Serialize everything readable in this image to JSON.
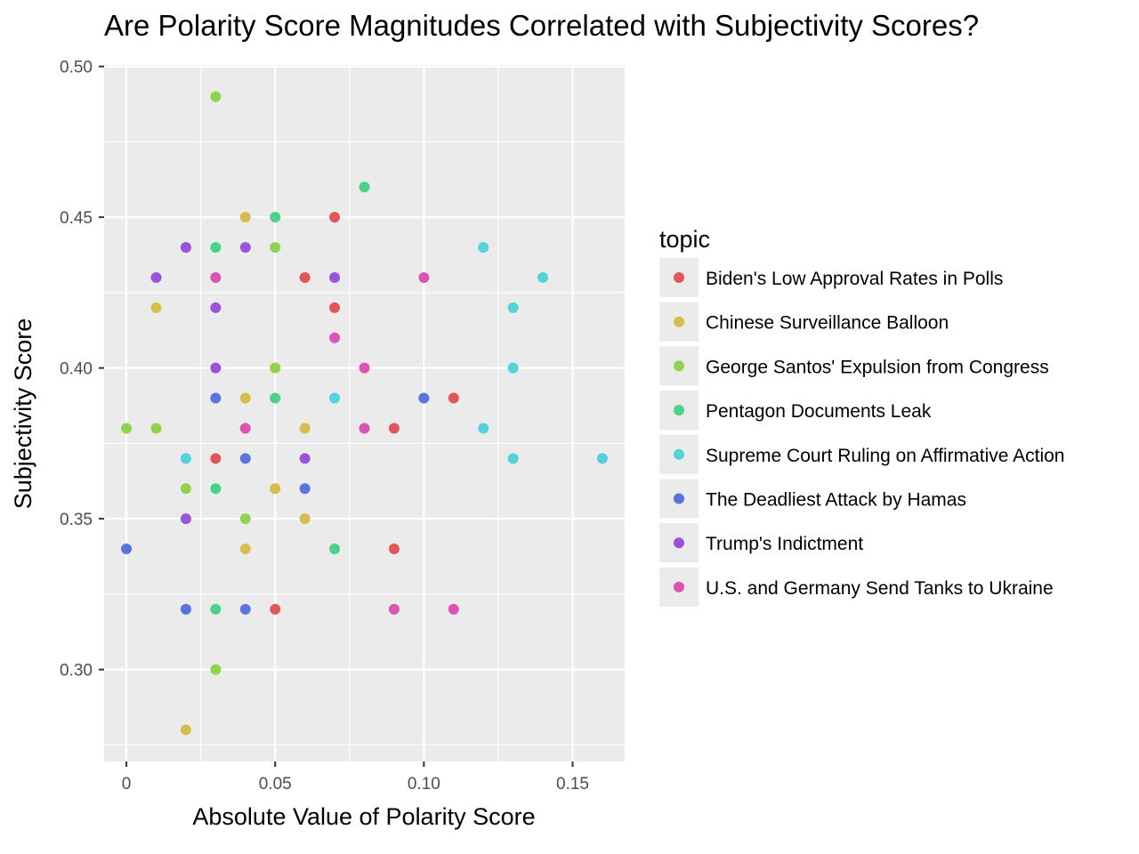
{
  "chart_data": {
    "type": "scatter",
    "title": "Are Polarity Score Magnitudes Correlated with Subjectivity Scores?",
    "xlabel": "Absolute Value of Polarity Score",
    "ylabel": "Subjectivity Score",
    "xlim": [
      -0.0075,
      0.1675
    ],
    "ylim": [
      0.2695,
      0.5005
    ],
    "x_ticks": [
      0,
      0.05,
      0.1,
      0.15
    ],
    "x_tick_labels": [
      "0",
      "0.05",
      "0.10",
      "0.15"
    ],
    "y_ticks": [
      0.3,
      0.35,
      0.4,
      0.45,
      0.5
    ],
    "y_tick_labels": [
      "0.30",
      "0.35",
      "0.40",
      "0.45",
      "0.50"
    ],
    "grid": true,
    "panel_background": "#ebebeb",
    "legend": {
      "title": "topic",
      "placement": "right"
    },
    "series": [
      {
        "name": "Biden's Low Approval Rates in Polls",
        "color": "#e15759",
        "points": [
          [
            0.07,
            0.45
          ],
          [
            0.06,
            0.43
          ],
          [
            0.07,
            0.42
          ],
          [
            0.11,
            0.39
          ],
          [
            0.09,
            0.38
          ],
          [
            0.03,
            0.37
          ],
          [
            0.09,
            0.34
          ],
          [
            0.05,
            0.32
          ]
        ]
      },
      {
        "name": "Chinese Surveillance Balloon",
        "color": "#d9bd4a",
        "points": [
          [
            0.04,
            0.45
          ],
          [
            0.01,
            0.42
          ],
          [
            0.05,
            0.4
          ],
          [
            0.04,
            0.39
          ],
          [
            0.06,
            0.38
          ],
          [
            0.05,
            0.36
          ],
          [
            0.06,
            0.35
          ],
          [
            0.04,
            0.34
          ],
          [
            0.02,
            0.28
          ]
        ]
      },
      {
        "name": "George Santos' Expulsion from Congress",
        "color": "#8fd54c",
        "points": [
          [
            0.03,
            0.49
          ],
          [
            0.05,
            0.44
          ],
          [
            0.05,
            0.4
          ],
          [
            0.0,
            0.38
          ],
          [
            0.01,
            0.38
          ],
          [
            0.02,
            0.36
          ],
          [
            0.04,
            0.35
          ],
          [
            0.03,
            0.3
          ]
        ]
      },
      {
        "name": "Pentagon Documents Leak",
        "color": "#48d486",
        "points": [
          [
            0.08,
            0.46
          ],
          [
            0.05,
            0.45
          ],
          [
            0.03,
            0.44
          ],
          [
            0.05,
            0.39
          ],
          [
            0.03,
            0.36
          ],
          [
            0.07,
            0.34
          ],
          [
            0.03,
            0.32
          ]
        ]
      },
      {
        "name": "Supreme Court Ruling on Affirmative Action",
        "color": "#52d3dc",
        "points": [
          [
            0.12,
            0.44
          ],
          [
            0.14,
            0.43
          ],
          [
            0.13,
            0.42
          ],
          [
            0.13,
            0.4
          ],
          [
            0.07,
            0.39
          ],
          [
            0.12,
            0.38
          ],
          [
            0.02,
            0.37
          ],
          [
            0.13,
            0.37
          ],
          [
            0.16,
            0.37
          ]
        ]
      },
      {
        "name": "The Deadliest Attack by Hamas",
        "color": "#5b73dc",
        "points": [
          [
            0.03,
            0.39
          ],
          [
            0.1,
            0.39
          ],
          [
            0.04,
            0.37
          ],
          [
            0.06,
            0.36
          ],
          [
            0.0,
            0.34
          ],
          [
            0.02,
            0.32
          ],
          [
            0.04,
            0.32
          ]
        ]
      },
      {
        "name": "Trump's Indictment",
        "color": "#9b52dc",
        "points": [
          [
            0.02,
            0.44
          ],
          [
            0.04,
            0.44
          ],
          [
            0.01,
            0.43
          ],
          [
            0.07,
            0.43
          ],
          [
            0.03,
            0.42
          ],
          [
            0.03,
            0.4
          ],
          [
            0.06,
            0.37
          ],
          [
            0.02,
            0.35
          ]
        ]
      },
      {
        "name": "U.S. and Germany Send Tanks to Ukraine",
        "color": "#dc52b5",
        "points": [
          [
            0.03,
            0.43
          ],
          [
            0.1,
            0.43
          ],
          [
            0.07,
            0.41
          ],
          [
            0.08,
            0.4
          ],
          [
            0.04,
            0.38
          ],
          [
            0.08,
            0.38
          ],
          [
            0.09,
            0.32
          ],
          [
            0.11,
            0.32
          ]
        ]
      }
    ]
  }
}
